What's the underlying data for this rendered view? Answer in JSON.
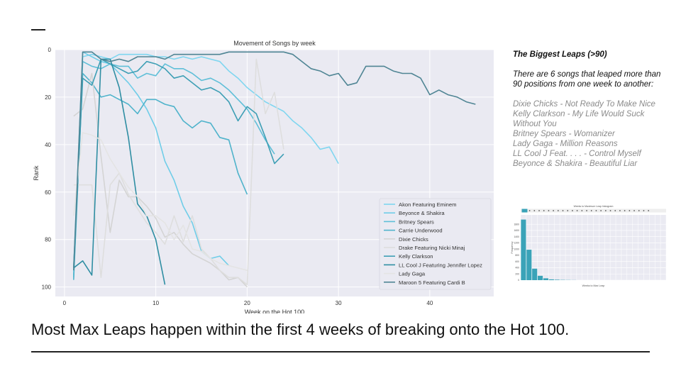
{
  "slide": {
    "footer_text": "Most Max Leaps happen within the first 4 weeks of breaking onto the Hot 100."
  },
  "side_panel": {
    "title": "The Biggest Leaps (>90)",
    "intro": "There are 6 songs that leaped more than 90 positions from one week to another:",
    "items": [
      "Dixie Chicks  - Not Ready To Make Nice",
      "Kelly Clarkson - My Life Would Suck Without You",
      "Britney Spears - Womanizer",
      "Lady Gaga - Million Reasons",
      "LL Cool J Feat. . . .  - Control Myself Beyonce & Shakira - Beautiful Liar"
    ]
  },
  "chart_data": [
    {
      "type": "line",
      "title": "Movement of Songs by week",
      "xlabel": "Week on the Hot 100",
      "ylabel": "Rank",
      "xlim": [
        -1,
        47
      ],
      "ylim": [
        0,
        104
      ],
      "y_inverted": true,
      "x_ticks": [
        0,
        10,
        20,
        30,
        40
      ],
      "y_ticks": [
        0,
        20,
        40,
        60,
        80,
        100
      ],
      "grid": true,
      "legend_position": "bottom-right",
      "series": [
        {
          "name": "Akon Featuring Eminem",
          "color": "#7fd6f0",
          "x": [
            1,
            2,
            3,
            4,
            5,
            6,
            7,
            8,
            9,
            10,
            11,
            12,
            13,
            14,
            15,
            16,
            17,
            18,
            19,
            20,
            21,
            22,
            23,
            24,
            25,
            26,
            27,
            28,
            29,
            30
          ],
          "y": [
            95,
            3,
            2,
            3,
            4,
            2,
            2,
            2,
            2,
            3,
            3,
            4,
            3,
            4,
            3,
            4,
            5,
            9,
            12,
            16,
            19,
            22,
            24,
            26,
            30,
            33,
            37,
            42,
            41,
            48
          ]
        },
        {
          "name": "Beyonce & Shakira",
          "color": "#6fcde8",
          "x": [
            1,
            2,
            3,
            4,
            5,
            6,
            7,
            8,
            9,
            10,
            11,
            12,
            13,
            14,
            15,
            16,
            17,
            18
          ],
          "y": [
            92,
            1,
            3,
            5,
            6,
            10,
            14,
            19,
            25,
            33,
            47,
            55,
            66,
            73,
            85,
            88,
            87,
            91
          ]
        },
        {
          "name": "Britney Spears",
          "color": "#5fbfd8",
          "x": [
            1,
            2,
            3,
            4,
            5,
            6,
            7,
            8,
            9,
            10,
            11,
            12,
            13,
            14,
            15,
            16,
            17,
            18,
            19,
            20,
            21,
            22,
            23
          ],
          "y": [
            96,
            5,
            7,
            8,
            6,
            7,
            7,
            12,
            10,
            11,
            6,
            8,
            8,
            10,
            13,
            12,
            14,
            17,
            21,
            25,
            31,
            38,
            44
          ]
        },
        {
          "name": "Carrie Underwood",
          "color": "#4fb3cb",
          "x": [
            1,
            2,
            3,
            4,
            5,
            6,
            7,
            8,
            9,
            10,
            11,
            12,
            13,
            14,
            15,
            16,
            17,
            18,
            19,
            20
          ],
          "y": [
            97,
            10,
            14,
            20,
            19,
            21,
            23,
            27,
            21,
            21,
            23,
            24,
            30,
            33,
            30,
            31,
            37,
            38,
            52,
            61
          ]
        },
        {
          "name": "Dixie Chicks",
          "color": "#d4d4d4",
          "x": [
            1,
            2,
            3,
            4,
            5,
            6,
            7,
            8,
            9,
            10,
            11,
            12,
            13,
            14,
            15,
            16,
            17,
            18,
            19,
            20
          ],
          "y": [
            28,
            25,
            10,
            45,
            77,
            55,
            62,
            62,
            66,
            71,
            79,
            77,
            82,
            86,
            88,
            90,
            93,
            97,
            96,
            100
          ]
        },
        {
          "name": "Drake Featuring Nicki Minaj",
          "color": "#dedede",
          "x": [
            1,
            2,
            3,
            4,
            5,
            6,
            7,
            8,
            9,
            10,
            11,
            12,
            13,
            14,
            15,
            16,
            17,
            18,
            19,
            20,
            21,
            22,
            23,
            24
          ],
          "y": [
            57,
            57,
            57,
            96,
            57,
            52,
            61,
            67,
            73,
            77,
            82,
            70,
            81,
            70,
            84,
            88,
            93,
            96,
            96,
            99,
            4,
            27,
            18,
            42
          ]
        },
        {
          "name": "Kelly Clarkson",
          "color": "#3e9fb5",
          "x": [
            1,
            2,
            3,
            4,
            5,
            6,
            7,
            8,
            9,
            10,
            11,
            12,
            13,
            14,
            15,
            16,
            17,
            18,
            19,
            20,
            21,
            22,
            23,
            24
          ],
          "y": [
            92,
            12,
            15,
            4,
            6,
            8,
            10,
            9,
            5,
            6,
            8,
            12,
            11,
            14,
            17,
            16,
            18,
            22,
            30,
            24,
            27,
            37,
            48,
            44
          ]
        },
        {
          "name": "LL Cool J Featuring Jennifer Lopez",
          "color": "#2f8ea3",
          "x": [
            1,
            2,
            3,
            4,
            5,
            6,
            7,
            8,
            9,
            10,
            11
          ],
          "y": [
            92,
            89,
            95,
            4,
            4,
            16,
            37,
            65,
            70,
            80,
            99
          ]
        },
        {
          "name": "Lady Gaga",
          "color": "#e4e4e4",
          "x": [
            1,
            2,
            3,
            4,
            5,
            6,
            7,
            8,
            9,
            10,
            11,
            12,
            13,
            14,
            15,
            16,
            17,
            18,
            19,
            20
          ],
          "y": [
            70,
            35,
            36,
            38,
            46,
            52,
            58,
            62,
            70,
            70,
            73,
            80,
            74,
            84,
            85,
            88,
            90,
            91,
            92,
            93
          ]
        },
        {
          "name": "Maroon 5 Featuring Cardi B",
          "color": "#4f8594",
          "x": [
            1,
            2,
            3,
            4,
            5,
            6,
            7,
            8,
            9,
            10,
            11,
            12,
            13,
            14,
            15,
            16,
            17,
            18,
            19,
            20,
            21,
            22,
            23,
            24,
            25,
            26,
            27,
            28,
            29,
            30,
            31,
            32,
            33,
            34,
            35,
            36,
            37,
            38,
            39,
            40,
            41,
            42,
            43,
            44,
            45
          ],
          "y": [
            93,
            1,
            1,
            4,
            5,
            4,
            5,
            3,
            3,
            3,
            4,
            2,
            2,
            2,
            2,
            2,
            2,
            1,
            1,
            1,
            1,
            1,
            1,
            1,
            2,
            5,
            8,
            9,
            11,
            10,
            15,
            14,
            7,
            7,
            7,
            9,
            10,
            10,
            12,
            19,
            17,
            19,
            20,
            22,
            23
          ]
        }
      ]
    },
    {
      "type": "bar",
      "title": "Weeks to Maximum Leap histogram",
      "xlabel": "Weeks to Max Leap",
      "ylabel": "Frequency",
      "categories": [
        1,
        2,
        3,
        4,
        5,
        6,
        7,
        8,
        9,
        10
      ],
      "values": [
        1950,
        980,
        370,
        140,
        60,
        25,
        15,
        8,
        5,
        3
      ],
      "ylim": [
        0,
        2100
      ],
      "y_ticks": [
        0,
        200,
        400,
        600,
        800,
        1000,
        1200,
        1400,
        1600,
        1800
      ]
    }
  ]
}
